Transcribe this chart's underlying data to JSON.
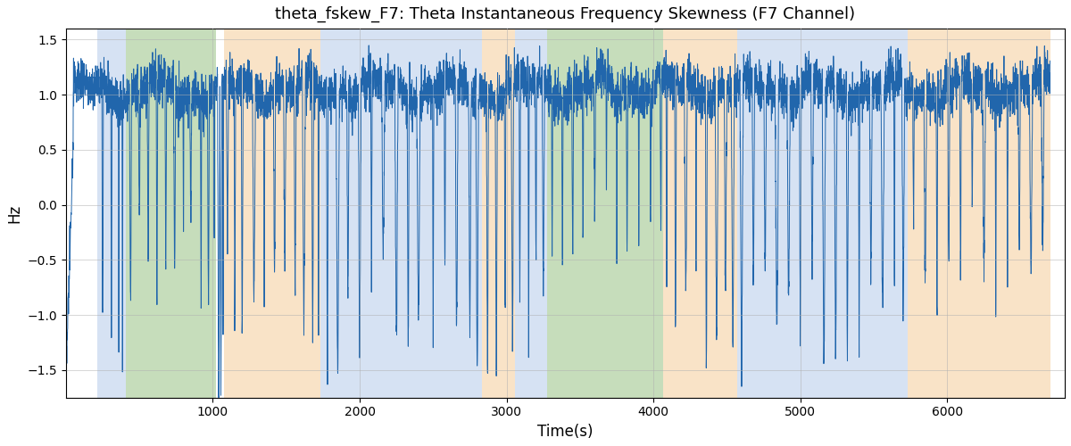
{
  "title": "theta_fskew_F7: Theta Instantaneous Frequency Skewness (F7 Channel)",
  "xlabel": "Time(s)",
  "ylabel": "Hz",
  "xlim": [
    0,
    6800
  ],
  "ylim": [
    -1.75,
    1.6
  ],
  "line_color": "#2166AC",
  "line_width": 0.7,
  "background_regions": [
    {
      "xmin": 215,
      "xmax": 405,
      "color": "#AEC6E8",
      "alpha": 0.5
    },
    {
      "xmin": 405,
      "xmax": 1020,
      "color": "#8FBC78",
      "alpha": 0.5
    },
    {
      "xmin": 1075,
      "xmax": 1730,
      "color": "#F5C890",
      "alpha": 0.5
    },
    {
      "xmin": 1730,
      "xmax": 2830,
      "color": "#AEC6E8",
      "alpha": 0.5
    },
    {
      "xmin": 2830,
      "xmax": 3060,
      "color": "#F5C890",
      "alpha": 0.5
    },
    {
      "xmin": 3060,
      "xmax": 3275,
      "color": "#AEC6E8",
      "alpha": 0.5
    },
    {
      "xmin": 3275,
      "xmax": 4065,
      "color": "#8FBC78",
      "alpha": 0.5
    },
    {
      "xmin": 4065,
      "xmax": 4570,
      "color": "#F5C890",
      "alpha": 0.5
    },
    {
      "xmin": 4570,
      "xmax": 5730,
      "color": "#AEC6E8",
      "alpha": 0.5
    },
    {
      "xmin": 5730,
      "xmax": 6700,
      "color": "#F5C890",
      "alpha": 0.5
    }
  ],
  "yticks": [
    -1.5,
    -1.0,
    -0.5,
    0.0,
    0.5,
    1.0,
    1.5
  ],
  "xticks": [
    1000,
    2000,
    3000,
    4000,
    5000,
    6000
  ],
  "figsize": [
    12.0,
    5.0
  ],
  "dpi": 100
}
